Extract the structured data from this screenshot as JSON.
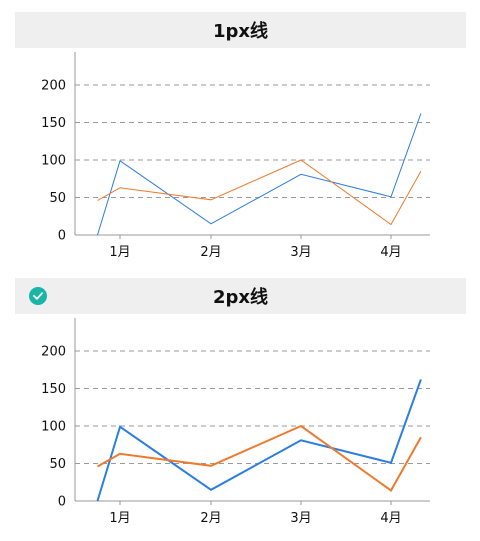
{
  "chart_data": [
    {
      "type": "line",
      "title": "1px线",
      "categories": [
        "1月",
        "2月",
        "3月",
        "4月"
      ],
      "x": [
        0.5,
        1,
        2,
        3,
        4,
        4.33
      ],
      "series": [
        {
          "color": "#2a7de1",
          "values": [
            0,
            99,
            15,
            81,
            51,
            162
          ]
        },
        {
          "color": "#ee7a2f",
          "values": [
            46,
            63,
            47,
            100,
            14,
            85
          ]
        }
      ],
      "yticks": [
        0,
        50,
        100,
        150,
        200
      ],
      "ylim": [
        0,
        240
      ],
      "grid": true,
      "line_width": "1px"
    },
    {
      "type": "line",
      "title": "2px线",
      "selected": true,
      "categories": [
        "1月",
        "2月",
        "3月",
        "4月"
      ],
      "x": [
        0.5,
        1,
        2,
        3,
        4,
        4.33
      ],
      "series": [
        {
          "color": "#2a7de1",
          "values": [
            0,
            99,
            15,
            81,
            51,
            162
          ]
        },
        {
          "color": "#ee7a2f",
          "values": [
            46,
            63,
            47,
            100,
            14,
            85
          ]
        }
      ],
      "yticks": [
        0,
        50,
        100,
        150,
        200
      ],
      "ylim": [
        0,
        240
      ],
      "grid": true,
      "line_width": "2px"
    }
  ]
}
